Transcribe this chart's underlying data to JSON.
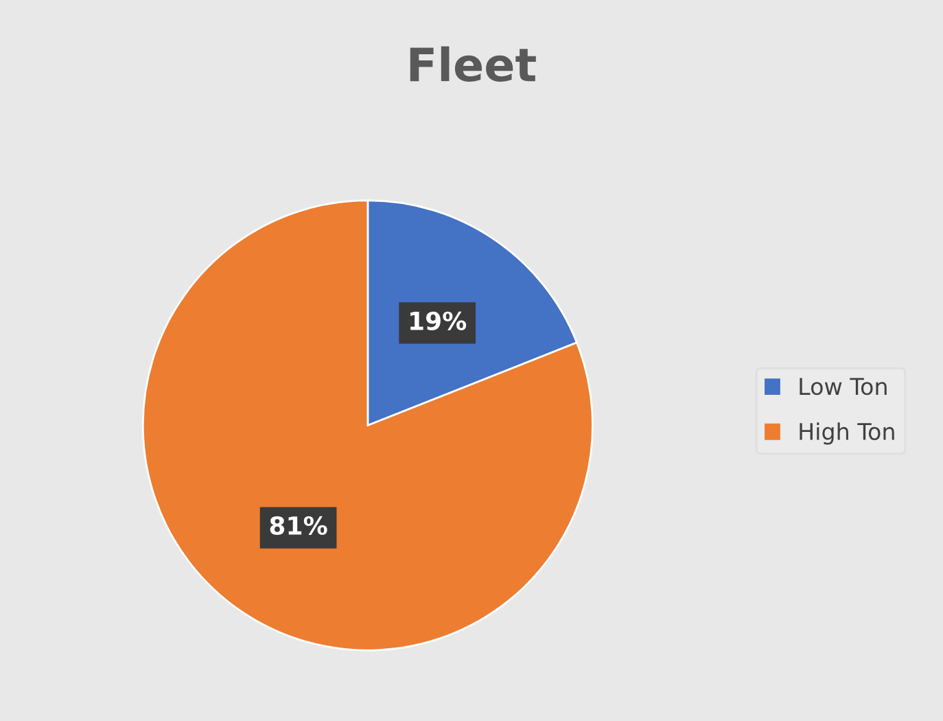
{
  "chart_data": {
    "type": "pie",
    "title": "Fleet",
    "categories": [
      "Low Ton",
      "High Ton"
    ],
    "values": [
      19,
      81
    ],
    "colors": [
      "#4472c4",
      "#ed7d31"
    ],
    "value_labels": [
      "19%",
      "81%"
    ],
    "legend": "right"
  }
}
